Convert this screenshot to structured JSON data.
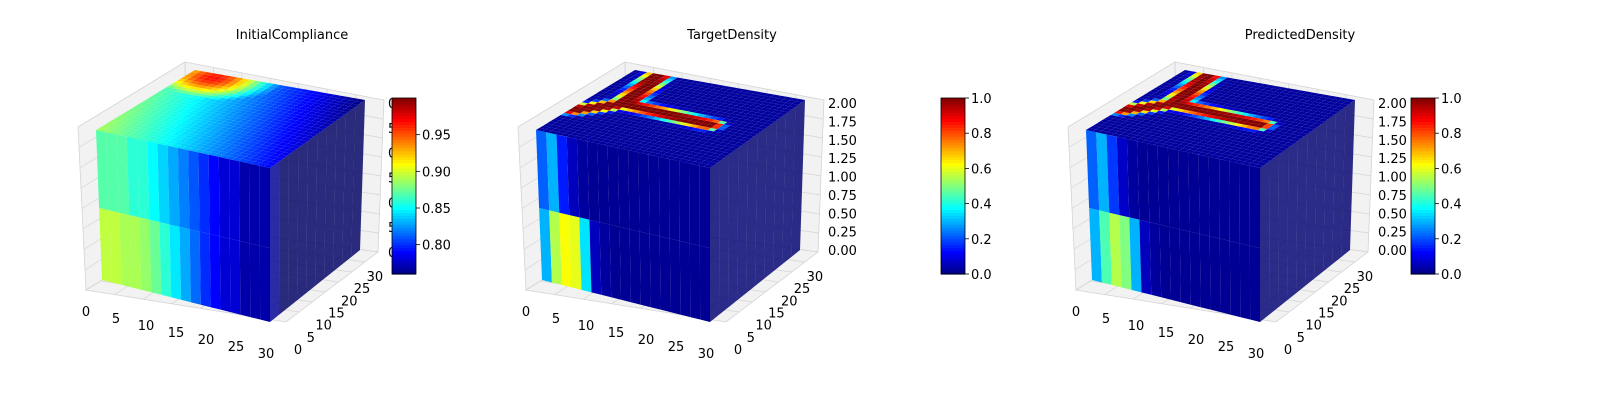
{
  "colors": {
    "colormap": "jet",
    "jet_stops": [
      "#00007f",
      "#0000ff",
      "#007fff",
      "#00ffff",
      "#7fff7f",
      "#ffff00",
      "#ff7f00",
      "#ff0000",
      "#7f0000"
    ],
    "pane": "#f2f2f2",
    "grid": "#d4d4d4"
  },
  "chart_data": [
    {
      "type": "3d-voxel",
      "title": "InitialCompliance",
      "x_ticks": [
        "0",
        "5",
        "10",
        "15",
        "20",
        "25",
        "30"
      ],
      "y_ticks": [
        "0",
        "5",
        "10",
        "15",
        "20",
        "25",
        "30"
      ],
      "z_ticks": [
        "0",
        "5",
        "0",
        "5",
        "0",
        "5",
        "0"
      ],
      "colorbar": {
        "min": 0.76,
        "max": 1.0,
        "ticks": [
          "0.80",
          "0.85",
          "0.90",
          "0.95"
        ],
        "tick_values": [
          0.8,
          0.85,
          0.9,
          0.95
        ]
      },
      "front_face_values": [
        0.87,
        0.87,
        0.87,
        0.86,
        0.86,
        0.85,
        0.84,
        0.83,
        0.82,
        0.81,
        0.8,
        0.79,
        0.78,
        0.78,
        0.77,
        0.77,
        0.77
      ],
      "front_face_lower_values": [
        0.895,
        0.895,
        0.89,
        0.89,
        0.885,
        0.875,
        0.86,
        0.845,
        0.83,
        0.815,
        0.8,
        0.79,
        0.78,
        0.78,
        0.77,
        0.77,
        0.77
      ],
      "top_face_hotspot": {
        "x": 8,
        "y": 30,
        "value": 0.97
      },
      "side_face_value": 0.775
    },
    {
      "type": "3d-voxel",
      "title": "TargetDensity",
      "x_ticks": [
        "0",
        "5",
        "10",
        "15",
        "20",
        "25",
        "30"
      ],
      "y_ticks": [
        "0",
        "5",
        "10",
        "15",
        "20",
        "25",
        "30"
      ],
      "z_ticks": [
        "0.00",
        "0.25",
        "0.50",
        "0.75",
        "1.00",
        "1.25",
        "1.50",
        "1.75",
        "2.00"
      ],
      "colorbar": {
        "min": 0.0,
        "max": 1.0,
        "ticks": [
          "0.0",
          "0.2",
          "0.4",
          "0.6",
          "0.8",
          "1.0"
        ],
        "tick_values": [
          0.0,
          0.2,
          0.4,
          0.6,
          0.8,
          1.0
        ]
      },
      "front_face_values": [
        0.22,
        0.3,
        0.15,
        0.06,
        0.03,
        0.02,
        0.02,
        0.02,
        0.02,
        0.02,
        0.02,
        0.02,
        0.02,
        0.02,
        0.02,
        0.02,
        0.02
      ],
      "front_face_lower_values": [
        0.3,
        0.55,
        0.62,
        0.6,
        0.35,
        0.06,
        0.03,
        0.02,
        0.02,
        0.02,
        0.02,
        0.02,
        0.02,
        0.02,
        0.02,
        0.02,
        0.02
      ],
      "top_face_value": 0.03,
      "top_face_shape": "Y-shaped high-density region (value 1.0) spanning the top surface",
      "side_face_value": 0.02
    },
    {
      "type": "3d-voxel",
      "title": "PredictedDensity",
      "x_ticks": [
        "0",
        "5",
        "10",
        "15",
        "20",
        "25",
        "30"
      ],
      "y_ticks": [
        "0",
        "5",
        "10",
        "15",
        "20",
        "25",
        "30"
      ],
      "z_ticks": [
        "0.00",
        "0.25",
        "0.50",
        "0.75",
        "1.00",
        "1.25",
        "1.50",
        "1.75",
        "2.00"
      ],
      "colorbar": {
        "min": 0.0,
        "max": 1.0,
        "ticks": [
          "0.0",
          "0.2",
          "0.4",
          "0.6",
          "0.8",
          "1.0"
        ],
        "tick_values": [
          0.0,
          0.2,
          0.4,
          0.6,
          0.8,
          1.0
        ]
      },
      "front_face_values": [
        0.22,
        0.3,
        0.18,
        0.07,
        0.03,
        0.02,
        0.02,
        0.02,
        0.02,
        0.02,
        0.02,
        0.02,
        0.02,
        0.02,
        0.02,
        0.02,
        0.02
      ],
      "front_face_lower_values": [
        0.3,
        0.45,
        0.55,
        0.5,
        0.3,
        0.06,
        0.03,
        0.02,
        0.02,
        0.02,
        0.02,
        0.02,
        0.02,
        0.02,
        0.02,
        0.02,
        0.02
      ],
      "top_face_value": 0.03,
      "top_face_shape": "Y-shaped high-density region (value ~1.0) spanning the top surface",
      "side_face_value": 0.02
    }
  ]
}
